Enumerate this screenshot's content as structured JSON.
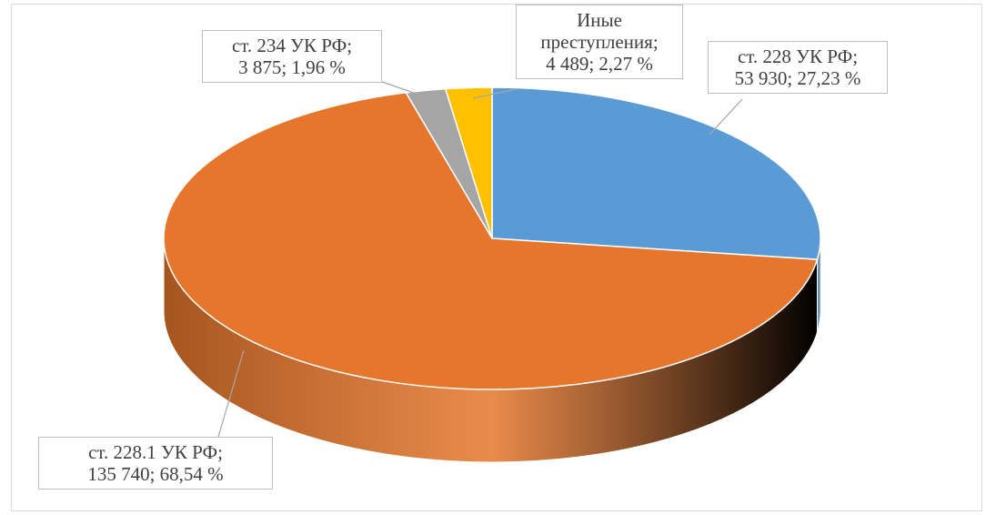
{
  "chart_data": {
    "type": "pie3d",
    "categories": [
      "ст. 228  УК РФ",
      "ст. 228.1  УК РФ",
      "ст. 234 УК РФ",
      "Иные преступления"
    ],
    "values": [
      53930,
      135740,
      3875,
      4489
    ],
    "value_labels": [
      "53 930",
      "135 740",
      "3 875",
      "4 489"
    ],
    "percents": [
      27.23,
      68.54,
      1.96,
      2.27
    ],
    "percent_labels": [
      "27,23 %",
      "68,54 %",
      "1,96 %",
      "2,27 %"
    ],
    "label_separator": ";",
    "colors": [
      "#5b9bd5",
      "#e5762c",
      "#a5a5a5",
      "#ffc000"
    ]
  }
}
